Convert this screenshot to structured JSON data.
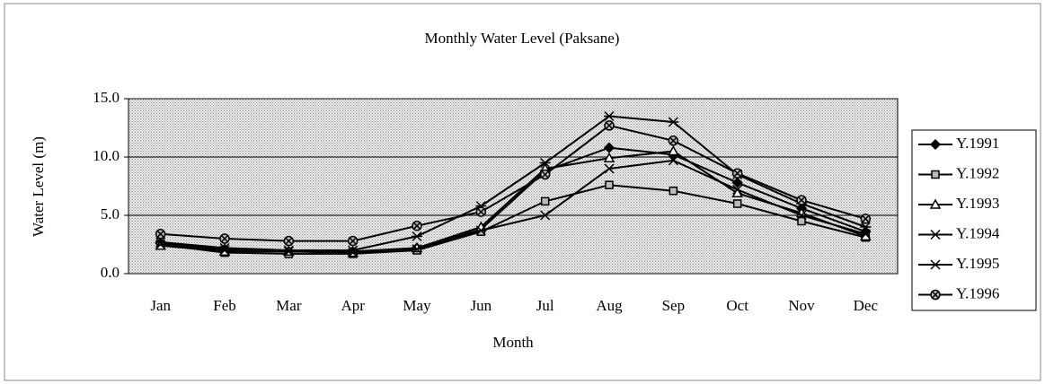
{
  "chart_data": {
    "type": "line",
    "title": "Monthly Water Level (Paksane)",
    "x_label": "Month",
    "y_label": "Water Level (m)",
    "categories": [
      "Jan",
      "Feb",
      "Mar",
      "Apr",
      "May",
      "Jun",
      "Jul",
      "Aug",
      "Sep",
      "Oct",
      "Nov",
      "Dec"
    ],
    "series": [
      {
        "name": "Y.1991",
        "color": "#000000",
        "marker": "diamond",
        "values": [
          2.6,
          2.1,
          1.9,
          1.9,
          2.2,
          3.8,
          8.8,
          10.8,
          10.2,
          7.8,
          5.6,
          3.6
        ]
      },
      {
        "name": "Y.1992",
        "color": "#000000",
        "marker": "square",
        "values": [
          2.5,
          1.8,
          1.7,
          1.7,
          2.0,
          3.6,
          6.2,
          7.6,
          7.1,
          6.0,
          4.5,
          3.1
        ]
      },
      {
        "name": "Y.1993",
        "color": "#000000",
        "marker": "triangle",
        "values": [
          2.4,
          1.9,
          1.9,
          1.8,
          2.2,
          4.0,
          9.0,
          9.9,
          10.5,
          6.9,
          5.2,
          3.2
        ]
      },
      {
        "name": "Y.1994",
        "color": "#000000",
        "marker": "x",
        "values": [
          2.5,
          2.0,
          1.9,
          1.8,
          2.1,
          3.7,
          5.0,
          9.0,
          9.7,
          7.2,
          5.0,
          3.4
        ]
      },
      {
        "name": "Y.1995",
        "color": "#000000",
        "marker": "asterisk",
        "values": [
          2.7,
          2.2,
          2.0,
          2.0,
          3.2,
          5.8,
          9.5,
          13.5,
          13.0,
          8.5,
          6.0,
          4.0
        ]
      },
      {
        "name": "Y.1996",
        "color": "#000000",
        "marker": "circle-x",
        "values": [
          3.4,
          3.0,
          2.8,
          2.8,
          4.1,
          5.3,
          8.5,
          12.7,
          11.4,
          8.6,
          6.3,
          4.7
        ]
      }
    ],
    "ylim": [
      0,
      15
    ],
    "yticks": [
      {
        "value": 0,
        "label": "0.0"
      },
      {
        "value": 5,
        "label": "5.0"
      },
      {
        "value": 10,
        "label": "10.0"
      },
      {
        "value": 15,
        "label": "15.0"
      }
    ],
    "grid": true,
    "legend": "right"
  }
}
